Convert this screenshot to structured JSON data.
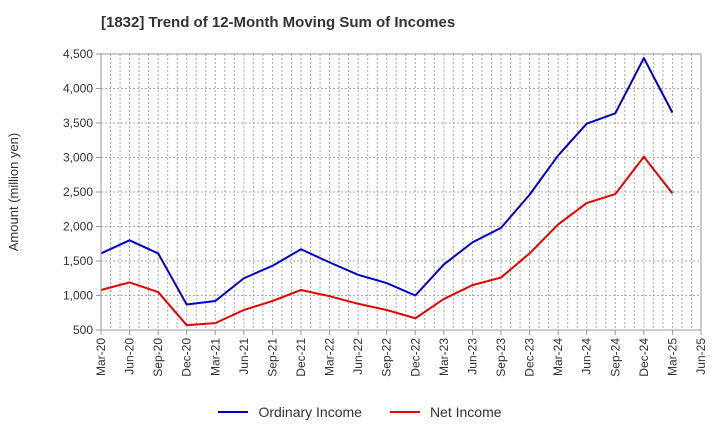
{
  "chart_data": {
    "type": "line",
    "title": "[1832]  Trend of 12-Month Moving Sum of Incomes",
    "xlabel": "",
    "ylabel": "Amount (million yen)",
    "ylim": [
      500,
      4500
    ],
    "yticks": [
      500,
      1000,
      1500,
      2000,
      2500,
      3000,
      3500,
      4000,
      4500
    ],
    "ytick_labels": [
      "500",
      "1,000",
      "1,500",
      "2,000",
      "2,500",
      "3,000",
      "3,500",
      "4,000",
      "4,500"
    ],
    "grid": true,
    "legend_position": "bottom-center",
    "categories": [
      "Mar-20",
      "Jun-20",
      "Sep-20",
      "Dec-20",
      "Mar-21",
      "Jun-21",
      "Sep-21",
      "Dec-21",
      "Mar-22",
      "Jun-22",
      "Sep-22",
      "Dec-22",
      "Mar-23",
      "Jun-23",
      "Sep-23",
      "Dec-23",
      "Mar-24",
      "Jun-24",
      "Sep-24",
      "Dec-24",
      "Mar-25",
      "Jun-25"
    ],
    "series": [
      {
        "name": "Ordinary Income",
        "color": "#0000cc",
        "values": [
          1610,
          1800,
          1610,
          870,
          920,
          1250,
          1430,
          1670,
          1480,
          1300,
          1180,
          1000,
          1450,
          1770,
          1980,
          2460,
          3030,
          3490,
          3640,
          4440,
          3650,
          null
        ]
      },
      {
        "name": "Net Income",
        "color": "#e60000",
        "values": [
          1080,
          1190,
          1050,
          570,
          600,
          790,
          920,
          1080,
          990,
          880,
          790,
          670,
          950,
          1150,
          1260,
          1610,
          2030,
          2340,
          2470,
          3010,
          2480,
          null
        ]
      }
    ]
  }
}
